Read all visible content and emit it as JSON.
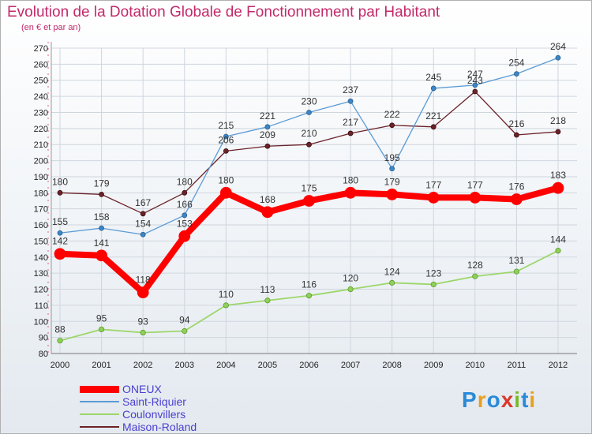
{
  "title": "Evolution de la Dotation Globale de Fonctionnement par Habitant",
  "subtitle": "(en € et par an)",
  "brand": {
    "text": "Proxiti",
    "letters": [
      "P",
      "r",
      "o",
      "x",
      "i",
      "t",
      "i"
    ],
    "colors": [
      "#2a8ad8",
      "#e8a020",
      "#2a8ad8",
      "#d83a2a",
      "#7ab82a",
      "#2a8ad8",
      "#e8a020"
    ]
  },
  "chart_data": {
    "type": "line",
    "title": "Evolution de la Dotation Globale de Fonctionnement par Habitant",
    "subtitle": "(en € et par an)",
    "xlabel": "",
    "ylabel": "",
    "x": [
      "2000",
      "2001",
      "2002",
      "2003",
      "2004",
      "2005",
      "2006",
      "2007",
      "2008",
      "2009",
      "2010",
      "2011",
      "2012"
    ],
    "ylim": [
      80,
      270
    ],
    "yticks": [
      80,
      90,
      100,
      110,
      120,
      130,
      140,
      150,
      160,
      170,
      180,
      190,
      200,
      210,
      220,
      230,
      240,
      250,
      260,
      270
    ],
    "grid": true,
    "legend_position": "bottom-left",
    "series": [
      {
        "name": "ONEUX",
        "color": "#ff0000",
        "values": [
          142,
          141,
          118,
          153,
          180,
          168,
          175,
          180,
          179,
          177,
          177,
          176,
          183
        ]
      },
      {
        "name": "Saint-Riquier",
        "color": "#5b9bd5",
        "values": [
          155,
          158,
          154,
          166,
          215,
          221,
          230,
          237,
          195,
          245,
          247,
          254,
          264
        ]
      },
      {
        "name": "Coulonvillers",
        "color": "#9cd66a",
        "values": [
          88,
          95,
          93,
          94,
          110,
          113,
          116,
          120,
          124,
          123,
          128,
          131,
          144
        ]
      },
      {
        "name": "Maison-Roland",
        "color": "#6b2228",
        "values": [
          180,
          179,
          167,
          180,
          206,
          209,
          210,
          217,
          222,
          221,
          243,
          216,
          218
        ]
      }
    ]
  }
}
